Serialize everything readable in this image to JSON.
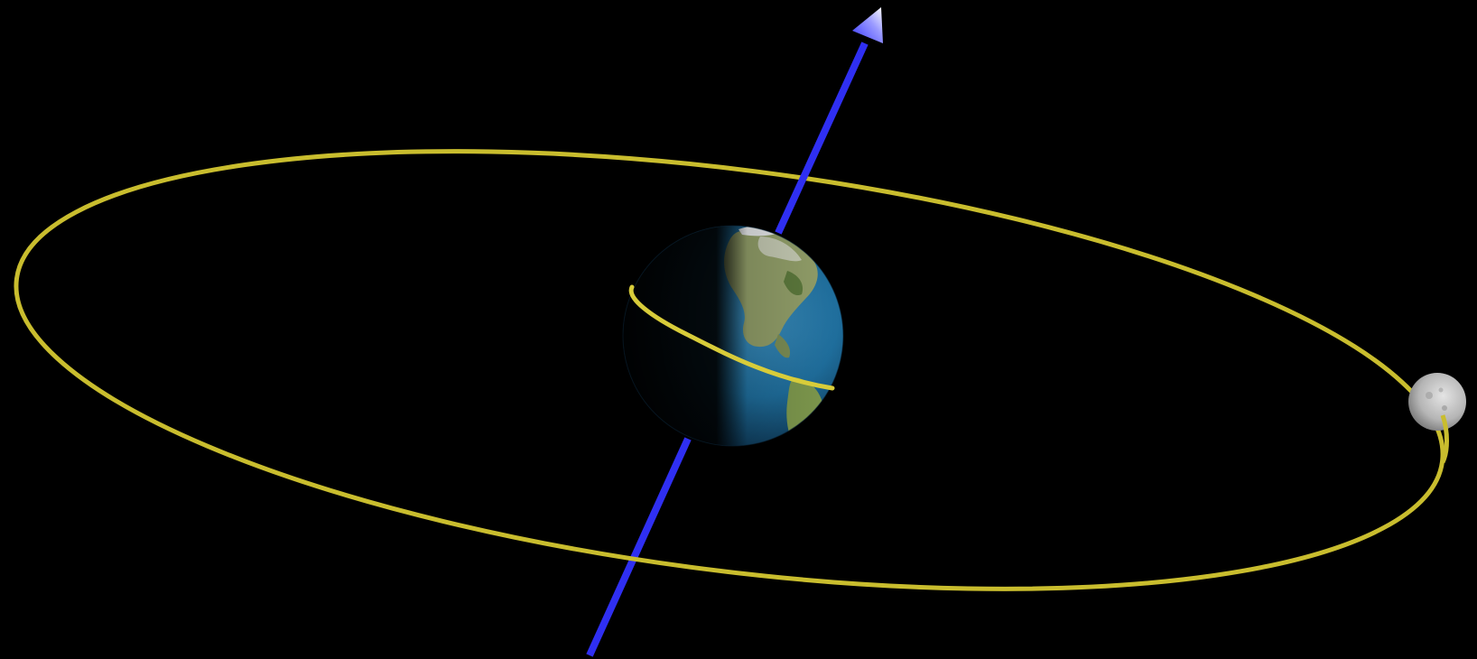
{
  "colors": {
    "background": "#000000",
    "orbit": "#c9bd2e",
    "rotation_axis": "#2f2ff2",
    "axis_arrowhead_tip": "#e6e6ff",
    "earth_ocean": "#1f6f9e",
    "earth_land": "#8fa36a",
    "earth_night": "#02070c",
    "moon": "#bdbdbd"
  },
  "icons": {
    "earth": "earth-globe-icon",
    "moon": "moon-icon",
    "axis": "arrow-up-icon"
  }
}
